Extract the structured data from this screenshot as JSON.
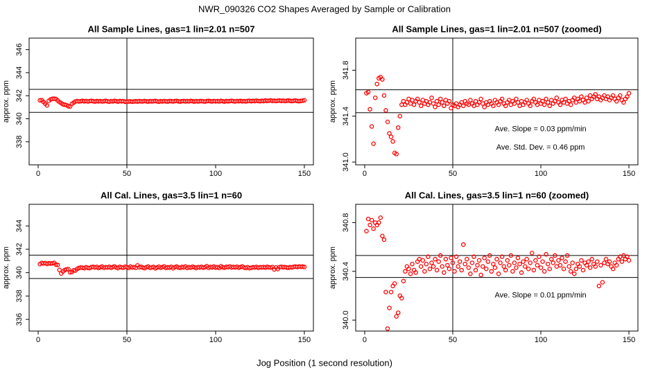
{
  "title": "NWR_090326  CO2 Shapes Averaged by Sample or Calibration",
  "xlabel": "Jog Position (1 second resolution)",
  "chart_data": [
    {
      "type": "scatter",
      "title": "All Sample Lines, gas=1 lin=2.01 n=507",
      "ylabel": "approx. ppm",
      "color": "#ff0000",
      "xlim": [
        -5.1,
        155.1
      ],
      "xticks": [
        0,
        50,
        100,
        150
      ],
      "ylim": [
        336,
        347
      ],
      "yticks": [
        338,
        340,
        342,
        344,
        346
      ],
      "hlines": [
        342.55,
        340.55
      ],
      "vlines": [
        50
      ],
      "x": [
        1,
        2,
        3,
        4,
        5,
        6,
        7,
        8,
        9,
        10,
        11,
        12,
        13,
        14,
        15,
        16,
        17,
        18,
        19,
        20,
        21,
        22,
        23,
        24,
        25,
        26,
        27,
        28,
        29,
        30,
        31,
        32,
        33,
        34,
        35,
        36,
        37,
        38,
        39,
        40,
        41,
        42,
        43,
        44,
        45,
        46,
        47,
        48,
        49,
        50,
        51,
        52,
        53,
        54,
        55,
        56,
        57,
        58,
        59,
        60,
        61,
        62,
        63,
        64,
        65,
        66,
        67,
        68,
        69,
        70,
        71,
        72,
        73,
        74,
        75,
        76,
        77,
        78,
        79,
        80,
        81,
        82,
        83,
        84,
        85,
        86,
        87,
        88,
        89,
        90,
        91,
        92,
        93,
        94,
        95,
        96,
        97,
        98,
        99,
        100,
        101,
        102,
        103,
        104,
        105,
        106,
        107,
        108,
        109,
        110,
        111,
        112,
        113,
        114,
        115,
        116,
        117,
        118,
        119,
        120,
        121,
        122,
        123,
        124,
        125,
        126,
        127,
        128,
        129,
        130,
        131,
        132,
        133,
        134,
        135,
        136,
        137,
        138,
        139,
        140,
        141,
        142,
        143,
        144,
        145,
        146,
        147,
        148,
        149,
        150
      ],
      "values": [
        341.6,
        341.61,
        341.46,
        341.31,
        341.16,
        341.56,
        341.68,
        341.73,
        341.74,
        341.72,
        341.58,
        341.45,
        341.35,
        341.25,
        341.22,
        341.18,
        341.08,
        341.07,
        341.3,
        341.4,
        341.5,
        341.53,
        341.5,
        341.52,
        341.55,
        341.51,
        341.54,
        341.5,
        341.53,
        341.55,
        341.52,
        341.49,
        341.54,
        341.51,
        341.53,
        341.5,
        341.52,
        341.56,
        341.51,
        341.48,
        341.53,
        341.5,
        341.55,
        341.52,
        341.49,
        341.54,
        341.51,
        341.53,
        341.47,
        341.5,
        341.49,
        341.51,
        341.48,
        341.5,
        341.52,
        341.49,
        341.53,
        341.51,
        341.5,
        341.54,
        341.51,
        341.49,
        341.53,
        341.5,
        341.52,
        341.55,
        341.51,
        341.48,
        341.52,
        341.5,
        341.53,
        341.51,
        341.49,
        341.54,
        341.52,
        341.5,
        341.53,
        341.55,
        341.51,
        341.49,
        341.52,
        341.54,
        341.5,
        341.53,
        341.51,
        341.55,
        341.52,
        341.49,
        341.53,
        341.5,
        341.52,
        341.54,
        341.51,
        341.49,
        341.53,
        341.55,
        341.52,
        341.5,
        341.54,
        341.51,
        341.53,
        341.5,
        341.55,
        341.52,
        341.49,
        341.54,
        341.51,
        341.53,
        341.56,
        341.52,
        341.5,
        341.54,
        341.52,
        341.55,
        341.51,
        341.53,
        341.5,
        341.54,
        341.56,
        341.52,
        341.55,
        341.53,
        341.57,
        341.54,
        341.52,
        341.56,
        341.53,
        341.58,
        341.55,
        341.57,
        341.59,
        341.55,
        341.57,
        341.54,
        341.56,
        341.58,
        341.55,
        341.57,
        341.54,
        341.56,
        341.58,
        341.55,
        341.53,
        341.56,
        341.58,
        341.54,
        341.52,
        341.55,
        341.57,
        341.6
      ]
    },
    {
      "type": "scatter",
      "title": "All Sample Lines, gas=1 lin=2.01 n=507 (zoomed)",
      "ylabel": "approx. ppm",
      "color": "#ff0000",
      "xlim": [
        -5.1,
        155.1
      ],
      "xticks": [
        0,
        50,
        100,
        150
      ],
      "ylim": [
        340.976,
        342.08
      ],
      "yticks": [
        {
          "value": 341.0,
          "label": "341.0"
        },
        {
          "value": 341.4,
          "label": "341.4"
        },
        {
          "value": 341.8,
          "label": "341.8"
        }
      ],
      "hlines": [
        341.63,
        341.43
      ],
      "vlines": [
        50
      ],
      "annotations": [
        "Ave. Slope =  0.03  ppm/min",
        "Ave. Std. Dev. =  0.46  ppm"
      ],
      "x": [
        1,
        2,
        3,
        4,
        5,
        6,
        7,
        8,
        9,
        10,
        11,
        12,
        13,
        14,
        15,
        16,
        17,
        18,
        19,
        20,
        21,
        22,
        23,
        24,
        25,
        26,
        27,
        28,
        29,
        30,
        31,
        32,
        33,
        34,
        35,
        36,
        37,
        38,
        39,
        40,
        41,
        42,
        43,
        44,
        45,
        46,
        47,
        48,
        49,
        50,
        51,
        52,
        53,
        54,
        55,
        56,
        57,
        58,
        59,
        60,
        61,
        62,
        63,
        64,
        65,
        66,
        67,
        68,
        69,
        70,
        71,
        72,
        73,
        74,
        75,
        76,
        77,
        78,
        79,
        80,
        81,
        82,
        83,
        84,
        85,
        86,
        87,
        88,
        89,
        90,
        91,
        92,
        93,
        94,
        95,
        96,
        97,
        98,
        99,
        100,
        101,
        102,
        103,
        104,
        105,
        106,
        107,
        108,
        109,
        110,
        111,
        112,
        113,
        114,
        115,
        116,
        117,
        118,
        119,
        120,
        121,
        122,
        123,
        124,
        125,
        126,
        127,
        128,
        129,
        130,
        131,
        132,
        133,
        134,
        135,
        136,
        137,
        138,
        139,
        140,
        141,
        142,
        143,
        144,
        145,
        146,
        147,
        148,
        149,
        150
      ],
      "values": [
        341.6,
        341.61,
        341.46,
        341.31,
        341.16,
        341.56,
        341.68,
        341.73,
        341.74,
        341.72,
        341.58,
        341.45,
        341.35,
        341.25,
        341.22,
        341.18,
        341.08,
        341.07,
        341.3,
        341.4,
        341.5,
        341.53,
        341.5,
        341.52,
        341.55,
        341.51,
        341.54,
        341.5,
        341.53,
        341.55,
        341.52,
        341.49,
        341.54,
        341.51,
        341.53,
        341.5,
        341.52,
        341.56,
        341.51,
        341.48,
        341.53,
        341.5,
        341.55,
        341.52,
        341.49,
        341.54,
        341.51,
        341.53,
        341.47,
        341.5,
        341.49,
        341.51,
        341.48,
        341.5,
        341.52,
        341.49,
        341.53,
        341.51,
        341.5,
        341.54,
        341.51,
        341.49,
        341.53,
        341.5,
        341.52,
        341.55,
        341.51,
        341.48,
        341.52,
        341.5,
        341.53,
        341.51,
        341.49,
        341.54,
        341.52,
        341.5,
        341.53,
        341.55,
        341.51,
        341.49,
        341.52,
        341.54,
        341.5,
        341.53,
        341.51,
        341.55,
        341.52,
        341.49,
        341.53,
        341.5,
        341.52,
        341.54,
        341.51,
        341.49,
        341.53,
        341.55,
        341.52,
        341.5,
        341.54,
        341.51,
        341.53,
        341.5,
        341.55,
        341.52,
        341.49,
        341.54,
        341.51,
        341.53,
        341.56,
        341.52,
        341.5,
        341.54,
        341.52,
        341.55,
        341.51,
        341.53,
        341.5,
        341.54,
        341.56,
        341.52,
        341.55,
        341.53,
        341.57,
        341.54,
        341.52,
        341.56,
        341.53,
        341.58,
        341.55,
        341.57,
        341.59,
        341.55,
        341.57,
        341.54,
        341.56,
        341.58,
        341.55,
        341.57,
        341.54,
        341.56,
        341.58,
        341.55,
        341.53,
        341.56,
        341.58,
        341.54,
        341.52,
        341.55,
        341.57,
        341.6
      ]
    },
    {
      "type": "scatter",
      "title": "All Cal. Lines, gas=3.5 lin=1 n=60",
      "ylabel": "approx. ppm",
      "color": "#ff0000",
      "xlim": [
        -5.1,
        155.1
      ],
      "xticks": [
        0,
        50,
        100,
        150
      ],
      "ylim": [
        335,
        345.85
      ],
      "yticks": [
        336,
        338,
        340,
        342,
        344
      ],
      "hlines": [
        341.5,
        339.5
      ],
      "vlines": [
        50
      ],
      "x": [
        1,
        2,
        3,
        4,
        5,
        6,
        7,
        8,
        9,
        10,
        11,
        12,
        13,
        14,
        15,
        16,
        17,
        18,
        19,
        20,
        21,
        22,
        23,
        24,
        25,
        26,
        27,
        28,
        29,
        30,
        31,
        32,
        33,
        34,
        35,
        36,
        37,
        38,
        39,
        40,
        41,
        42,
        43,
        44,
        45,
        46,
        47,
        48,
        49,
        50,
        51,
        52,
        53,
        54,
        55,
        56,
        57,
        58,
        59,
        60,
        61,
        62,
        63,
        64,
        65,
        66,
        67,
        68,
        69,
        70,
        71,
        72,
        73,
        74,
        75,
        76,
        77,
        78,
        79,
        80,
        81,
        82,
        83,
        84,
        85,
        86,
        87,
        88,
        89,
        90,
        91,
        92,
        93,
        94,
        95,
        96,
        97,
        98,
        99,
        100,
        101,
        102,
        103,
        104,
        105,
        106,
        107,
        108,
        109,
        110,
        111,
        112,
        113,
        114,
        115,
        116,
        117,
        118,
        119,
        120,
        121,
        122,
        123,
        124,
        125,
        126,
        127,
        128,
        129,
        130,
        131,
        132,
        133,
        134,
        135,
        136,
        137,
        138,
        139,
        140,
        141,
        142,
        143,
        144,
        145,
        146,
        147,
        148,
        149,
        150
      ],
      "values": [
        340.73,
        340.83,
        340.78,
        340.82,
        340.75,
        340.8,
        340.78,
        340.8,
        340.84,
        340.69,
        340.66,
        340.23,
        339.93,
        340.1,
        340.23,
        340.28,
        340.3,
        340.03,
        340.06,
        340.2,
        340.18,
        340.32,
        340.4,
        340.44,
        340.42,
        340.38,
        340.46,
        340.41,
        340.39,
        340.48,
        340.5,
        340.44,
        340.49,
        340.4,
        340.46,
        340.52,
        340.42,
        340.47,
        340.44,
        340.5,
        340.41,
        340.48,
        340.53,
        340.44,
        340.39,
        340.5,
        340.45,
        340.42,
        340.51,
        340.47,
        340.4,
        340.52,
        340.44,
        340.48,
        340.41,
        340.62,
        340.46,
        340.5,
        340.43,
        340.38,
        340.47,
        340.52,
        340.41,
        340.45,
        340.49,
        340.37,
        340.44,
        340.51,
        340.42,
        340.48,
        340.53,
        340.4,
        340.46,
        340.43,
        340.5,
        340.38,
        340.47,
        340.52,
        340.44,
        340.41,
        340.49,
        340.45,
        340.53,
        340.4,
        340.47,
        340.43,
        340.51,
        340.46,
        340.39,
        340.48,
        340.44,
        340.5,
        340.42,
        340.47,
        340.55,
        340.41,
        340.49,
        340.45,
        340.52,
        340.43,
        340.48,
        340.4,
        340.54,
        340.46,
        340.42,
        340.5,
        340.47,
        340.53,
        340.44,
        340.49,
        340.45,
        340.51,
        340.42,
        340.48,
        340.53,
        340.44,
        340.4,
        340.47,
        340.38,
        340.42,
        340.46,
        340.44,
        340.49,
        340.41,
        340.47,
        340.45,
        340.48,
        340.43,
        340.5,
        340.46,
        340.44,
        340.48,
        340.28,
        340.45,
        340.31,
        340.47,
        340.5,
        340.46,
        340.48,
        340.44,
        340.42,
        340.47,
        340.45,
        340.5,
        340.52,
        340.48,
        340.53,
        340.5,
        340.52,
        340.49
      ]
    },
    {
      "type": "scatter",
      "title": "All Cal. Lines, gas=3.5 lin=1 n=60 (zoomed)",
      "ylabel": "approx. ppm",
      "color": "#ff0000",
      "xlim": [
        -5.1,
        155.1
      ],
      "xticks": [
        0,
        50,
        100,
        150
      ],
      "ylim": [
        339.91,
        340.95
      ],
      "yticks": [
        {
          "value": 340.0,
          "label": "340.0"
        },
        {
          "value": 340.4,
          "label": "340.4"
        },
        {
          "value": 340.8,
          "label": "340.8"
        }
      ],
      "hlines": [
        340.53,
        340.35
      ],
      "vlines": [
        50
      ],
      "annotations": [
        "Ave. Slope =  0.01  ppm/min"
      ],
      "x": [
        1,
        2,
        3,
        4,
        5,
        6,
        7,
        8,
        9,
        10,
        11,
        12,
        13,
        14,
        15,
        16,
        17,
        18,
        19,
        20,
        21,
        22,
        23,
        24,
        25,
        26,
        27,
        28,
        29,
        30,
        31,
        32,
        33,
        34,
        35,
        36,
        37,
        38,
        39,
        40,
        41,
        42,
        43,
        44,
        45,
        46,
        47,
        48,
        49,
        50,
        51,
        52,
        53,
        54,
        55,
        56,
        57,
        58,
        59,
        60,
        61,
        62,
        63,
        64,
        65,
        66,
        67,
        68,
        69,
        70,
        71,
        72,
        73,
        74,
        75,
        76,
        77,
        78,
        79,
        80,
        81,
        82,
        83,
        84,
        85,
        86,
        87,
        88,
        89,
        90,
        91,
        92,
        93,
        94,
        95,
        96,
        97,
        98,
        99,
        100,
        101,
        102,
        103,
        104,
        105,
        106,
        107,
        108,
        109,
        110,
        111,
        112,
        113,
        114,
        115,
        116,
        117,
        118,
        119,
        120,
        121,
        122,
        123,
        124,
        125,
        126,
        127,
        128,
        129,
        130,
        131,
        132,
        133,
        134,
        135,
        136,
        137,
        138,
        139,
        140,
        141,
        142,
        143,
        144,
        145,
        146,
        147,
        148,
        149,
        150
      ],
      "values": [
        340.73,
        340.83,
        340.78,
        340.82,
        340.75,
        340.8,
        340.78,
        340.8,
        340.84,
        340.69,
        340.66,
        340.23,
        339.93,
        340.1,
        340.23,
        340.28,
        340.3,
        340.03,
        340.06,
        340.2,
        340.18,
        340.32,
        340.4,
        340.44,
        340.42,
        340.38,
        340.46,
        340.41,
        340.39,
        340.48,
        340.5,
        340.44,
        340.49,
        340.4,
        340.46,
        340.52,
        340.42,
        340.47,
        340.44,
        340.5,
        340.41,
        340.48,
        340.53,
        340.44,
        340.39,
        340.5,
        340.45,
        340.42,
        340.51,
        340.47,
        340.4,
        340.52,
        340.44,
        340.48,
        340.41,
        340.62,
        340.46,
        340.5,
        340.43,
        340.38,
        340.47,
        340.52,
        340.41,
        340.45,
        340.49,
        340.37,
        340.44,
        340.51,
        340.42,
        340.48,
        340.53,
        340.4,
        340.46,
        340.43,
        340.5,
        340.38,
        340.47,
        340.52,
        340.44,
        340.41,
        340.49,
        340.45,
        340.53,
        340.4,
        340.47,
        340.43,
        340.51,
        340.46,
        340.39,
        340.48,
        340.44,
        340.5,
        340.42,
        340.47,
        340.55,
        340.41,
        340.49,
        340.45,
        340.52,
        340.43,
        340.48,
        340.4,
        340.54,
        340.46,
        340.42,
        340.5,
        340.47,
        340.53,
        340.44,
        340.49,
        340.45,
        340.51,
        340.42,
        340.48,
        340.53,
        340.44,
        340.4,
        340.47,
        340.38,
        340.42,
        340.46,
        340.44,
        340.49,
        340.41,
        340.47,
        340.45,
        340.48,
        340.43,
        340.5,
        340.46,
        340.44,
        340.48,
        340.28,
        340.45,
        340.31,
        340.47,
        340.5,
        340.46,
        340.48,
        340.44,
        340.42,
        340.47,
        340.45,
        340.5,
        340.52,
        340.48,
        340.53,
        340.5,
        340.52,
        340.49
      ]
    }
  ]
}
